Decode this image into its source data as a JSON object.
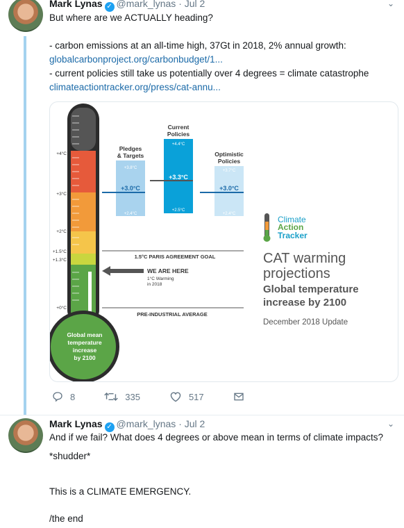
{
  "tweet1": {
    "name": "Mark Lynas",
    "handle": "@mark_lynas",
    "separator": "·",
    "date": "Jul 2",
    "line1": "But where are we ACTUALLY heading?",
    "line2": "- carbon emissions at an all-time high, 37Gt in 2018, 2% annual growth:",
    "link1": "globalcarbonproject.org/carbonbudget/1...",
    "line3": "- current policies still take us potentially over 4 degrees = climate catastrophe",
    "link2": "climateactiontracker.org/press/cat-annu...",
    "replies": "8",
    "retweets": "335",
    "likes": "517"
  },
  "tweet2": {
    "name": "Mark Lynas",
    "handle": "@mark_lynas",
    "separator": "·",
    "date": "Jul 2",
    "line1": "And if we fail? What does 4 degrees or above mean in terms of climate impacts?",
    "line2": "*shudder*",
    "line3": "This is a CLIMATE EMERGENCY.",
    "line4": "/the end"
  },
  "infographic": {
    "ticks": [
      "+4°C",
      "+3°C",
      "+2°C",
      "+1.5°C",
      "+1.3°C",
      "+0°C"
    ],
    "bulb_text": [
      "Global mean",
      "temperature",
      "increase",
      "by 2100"
    ],
    "pledges": {
      "title": [
        "Pledges",
        "& Targets"
      ],
      "high": "+3.8°C",
      "mid": "+3.0°C",
      "low": "+2.4°C"
    },
    "current": {
      "title": [
        "Current",
        "Policies"
      ],
      "high": "+4.4°C",
      "mid": "+3.3°C",
      "low": "+2.5°C"
    },
    "optimistic": {
      "title": [
        "Optimistic",
        "Policies"
      ],
      "high": "+3.7°C",
      "mid": "+3.0°C",
      "low": "+2.4°C"
    },
    "paris_goal": "1.5°C PARIS AGREEMENT GOAL",
    "we_are_here": "WE ARE HERE",
    "warming_note": [
      "1°C Warming",
      "in 2018"
    ],
    "preindustrial": "PRE-INDUSTRIAL AVERAGE",
    "logo": [
      "Climate",
      "Action",
      "Tracker"
    ],
    "headline": [
      "CAT warming",
      "projections"
    ],
    "subhead": [
      "Global temperature",
      "increase by 2100"
    ],
    "update": "December 2018 Update",
    "colors": {
      "light_blue": "#a9d3ee",
      "cyan": "#0aa1d9",
      "pale_blue": "#cbe6f6",
      "green": "#5ba547"
    }
  }
}
